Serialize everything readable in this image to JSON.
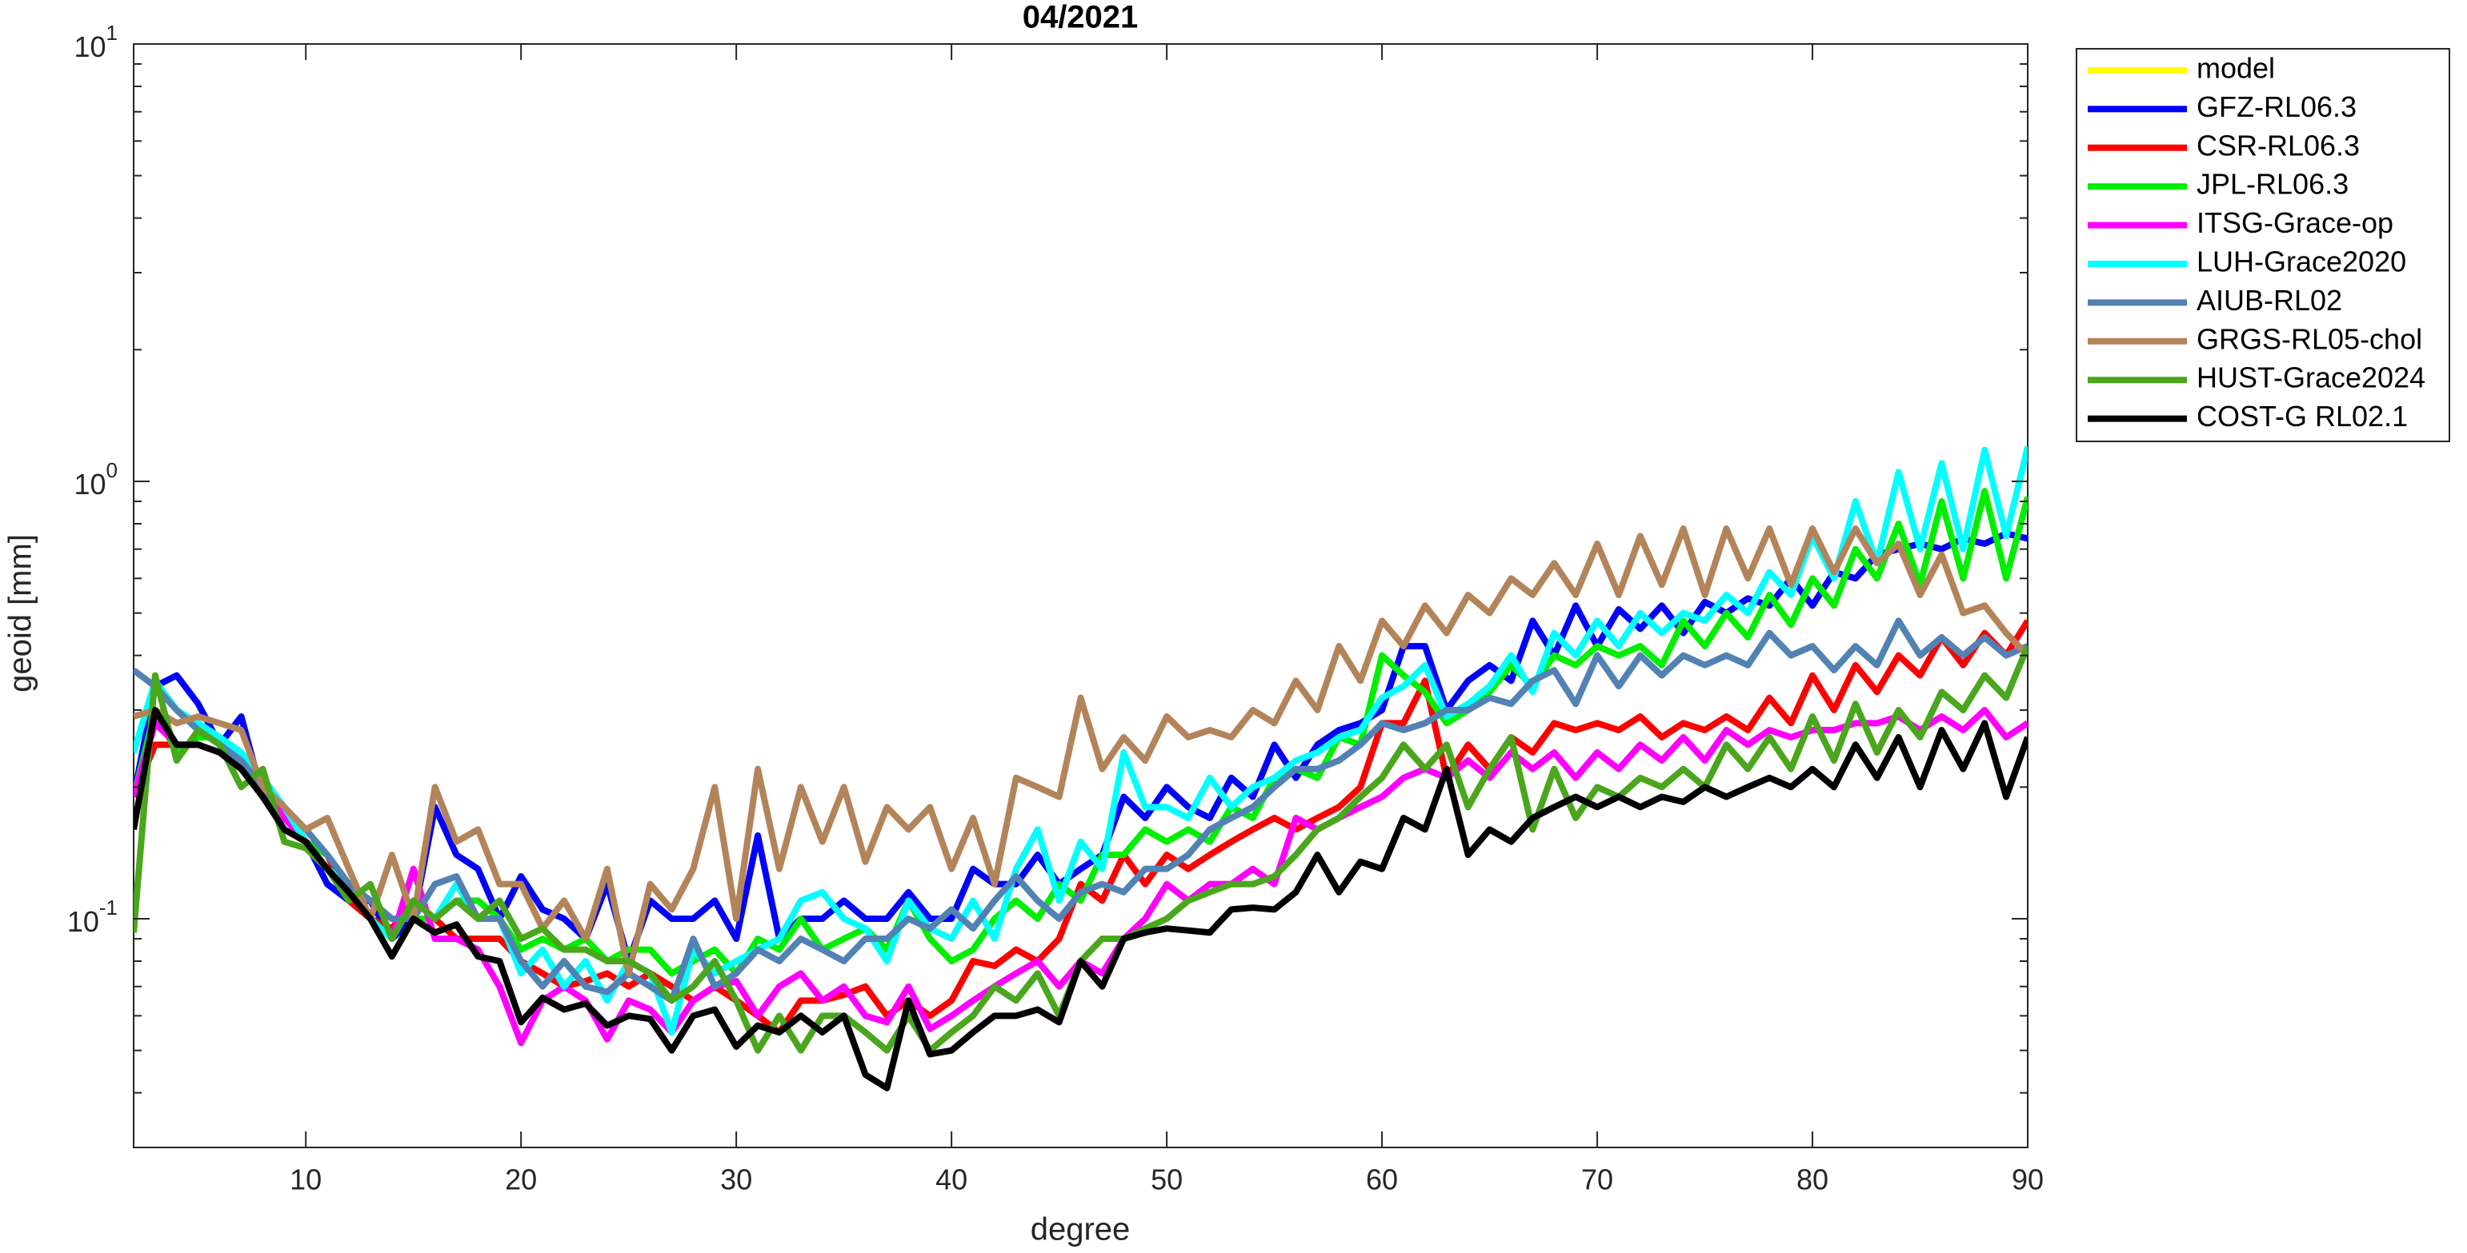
{
  "chart_data": {
    "type": "line",
    "title": "04/2021",
    "xlabel": "degree",
    "ylabel": "geoid [mm]",
    "log_y": true,
    "legend": "outside-right",
    "xlim": [
      2,
      90
    ],
    "xticks": [
      10,
      20,
      30,
      40,
      50,
      60,
      70,
      80,
      90
    ],
    "ylim": [
      0.03,
      10
    ],
    "yticks": [
      {
        "value": 0.1,
        "label": "10",
        "exponent": "-1"
      },
      {
        "value": 1,
        "label": "10",
        "exponent": "0"
      },
      {
        "value": 10,
        "label": "10",
        "exponent": "1"
      }
    ],
    "yminorticks": [
      0.04,
      0.05,
      0.06,
      0.07,
      0.08,
      0.09,
      0.2,
      0.3,
      0.4,
      0.5,
      0.6,
      0.7,
      0.8,
      0.9,
      2,
      3,
      4,
      5,
      6,
      7,
      8,
      9
    ],
    "x": [
      2,
      3,
      4,
      5,
      6,
      7,
      8,
      9,
      10,
      11,
      12,
      13,
      14,
      15,
      16,
      17,
      18,
      19,
      20,
      21,
      22,
      23,
      24,
      25,
      26,
      27,
      28,
      29,
      30,
      31,
      32,
      33,
      34,
      35,
      36,
      37,
      38,
      39,
      40,
      41,
      42,
      43,
      44,
      45,
      46,
      47,
      48,
      49,
      50,
      51,
      52,
      53,
      54,
      55,
      56,
      57,
      58,
      59,
      60,
      61,
      62,
      63,
      64,
      65,
      66,
      67,
      68,
      69,
      70,
      71,
      72,
      73,
      74,
      75,
      76,
      77,
      78,
      79,
      80,
      81,
      82,
      83,
      84,
      85,
      86,
      87,
      88,
      89,
      90
    ],
    "series": [
      {
        "name": "model",
        "color": "#ffff00",
        "values": [
          null,
          null,
          null,
          null,
          null,
          null,
          null,
          null,
          null,
          null,
          null,
          null,
          null,
          null,
          null,
          null,
          null,
          null,
          null,
          null,
          null,
          null,
          null,
          null,
          null,
          null,
          null,
          null,
          null,
          null,
          null,
          null,
          null,
          null,
          null,
          null,
          null,
          null,
          null,
          null,
          null,
          null,
          null,
          null,
          null,
          null,
          null,
          null,
          null,
          null,
          null,
          null,
          null,
          null,
          null,
          null,
          null,
          null,
          null,
          null,
          null,
          null,
          null,
          null,
          null,
          null,
          null,
          null,
          null,
          null,
          null,
          null,
          null,
          null,
          null,
          null,
          null,
          null,
          null,
          null,
          null,
          null,
          null,
          null,
          null,
          null,
          null,
          null,
          null
        ]
      },
      {
        "name": "GFZ-RL06.3",
        "color": "#0000ff",
        "values": [
          0.19,
          0.34,
          0.36,
          0.31,
          0.25,
          0.29,
          0.19,
          0.17,
          0.15,
          0.12,
          0.11,
          0.11,
          0.09,
          0.1,
          0.18,
          0.14,
          0.13,
          0.1,
          0.125,
          0.105,
          0.1,
          0.09,
          0.12,
          0.08,
          0.11,
          0.1,
          0.1,
          0.11,
          0.09,
          0.155,
          0.09,
          0.1,
          0.1,
          0.11,
          0.1,
          0.1,
          0.115,
          0.1,
          0.1,
          0.13,
          0.12,
          0.12,
          0.14,
          0.12,
          0.13,
          0.14,
          0.19,
          0.17,
          0.2,
          0.18,
          0.17,
          0.21,
          0.19,
          0.25,
          0.21,
          0.25,
          0.27,
          0.28,
          0.3,
          0.42,
          0.42,
          0.3,
          0.35,
          0.38,
          0.35,
          0.48,
          0.4,
          0.52,
          0.42,
          0.51,
          0.46,
          0.52,
          0.45,
          0.53,
          0.5,
          0.54,
          0.52,
          0.6,
          0.52,
          0.62,
          0.6,
          0.68,
          0.7,
          0.72,
          0.7,
          0.74,
          0.72,
          0.76,
          0.74
        ]
      },
      {
        "name": "CSR-RL06.3",
        "color": "#ff0000",
        "values": [
          0.19,
          0.25,
          0.25,
          0.25,
          0.24,
          0.22,
          0.2,
          0.18,
          0.15,
          0.14,
          0.11,
          0.1,
          0.095,
          0.11,
          0.1,
          0.09,
          0.09,
          0.09,
          0.08,
          0.075,
          0.07,
          0.072,
          0.075,
          0.07,
          0.075,
          0.07,
          0.065,
          0.07,
          0.065,
          0.06,
          0.055,
          0.065,
          0.065,
          0.067,
          0.07,
          0.06,
          0.065,
          0.06,
          0.065,
          0.08,
          0.078,
          0.085,
          0.08,
          0.09,
          0.12,
          0.11,
          0.14,
          0.12,
          0.14,
          0.13,
          0.14,
          0.15,
          0.16,
          0.17,
          0.16,
          0.17,
          0.18,
          0.2,
          0.28,
          0.28,
          0.35,
          0.21,
          0.25,
          0.22,
          0.26,
          0.24,
          0.28,
          0.27,
          0.28,
          0.27,
          0.29,
          0.26,
          0.28,
          0.27,
          0.29,
          0.27,
          0.32,
          0.28,
          0.36,
          0.3,
          0.38,
          0.33,
          0.4,
          0.36,
          0.44,
          0.38,
          0.45,
          0.4,
          0.48
        ]
      },
      {
        "name": "JPL-RL06.3",
        "color": "#00ee00",
        "values": [
          0.19,
          0.3,
          0.24,
          0.26,
          0.26,
          0.24,
          0.2,
          0.17,
          0.15,
          0.14,
          0.12,
          0.11,
          0.1,
          0.1,
          0.1,
          0.11,
          0.11,
          0.1,
          0.085,
          0.09,
          0.085,
          0.09,
          0.08,
          0.085,
          0.085,
          0.075,
          0.08,
          0.085,
          0.075,
          0.09,
          0.085,
          0.1,
          0.085,
          0.09,
          0.095,
          0.085,
          0.11,
          0.09,
          0.08,
          0.085,
          0.1,
          0.11,
          0.1,
          0.12,
          0.11,
          0.14,
          0.14,
          0.16,
          0.15,
          0.16,
          0.15,
          0.18,
          0.17,
          0.21,
          0.22,
          0.21,
          0.26,
          0.25,
          0.4,
          0.36,
          0.33,
          0.28,
          0.3,
          0.33,
          0.38,
          0.34,
          0.4,
          0.38,
          0.42,
          0.4,
          0.42,
          0.38,
          0.48,
          0.42,
          0.5,
          0.44,
          0.55,
          0.47,
          0.6,
          0.52,
          0.7,
          0.6,
          0.8,
          0.58,
          0.9,
          0.6,
          0.95,
          0.6,
          0.92
        ]
      },
      {
        "name": "ITSG-Grace-op",
        "color": "#ff00ff",
        "values": [
          0.19,
          0.28,
          0.25,
          0.25,
          0.24,
          0.22,
          0.2,
          0.17,
          0.15,
          0.13,
          0.12,
          0.1,
          0.09,
          0.13,
          0.09,
          0.09,
          0.085,
          0.07,
          0.052,
          0.065,
          0.07,
          0.065,
          0.053,
          0.065,
          0.062,
          0.055,
          0.065,
          0.07,
          0.072,
          0.06,
          0.07,
          0.075,
          0.065,
          0.07,
          0.06,
          0.058,
          0.07,
          0.056,
          0.06,
          0.065,
          0.07,
          0.075,
          0.08,
          0.07,
          0.08,
          0.075,
          0.09,
          0.1,
          0.12,
          0.11,
          0.12,
          0.12,
          0.13,
          0.12,
          0.17,
          0.16,
          0.17,
          0.18,
          0.19,
          0.21,
          0.22,
          0.21,
          0.23,
          0.21,
          0.24,
          0.22,
          0.24,
          0.21,
          0.24,
          0.22,
          0.25,
          0.23,
          0.26,
          0.23,
          0.27,
          0.25,
          0.27,
          0.26,
          0.27,
          0.27,
          0.28,
          0.28,
          0.29,
          0.27,
          0.29,
          0.27,
          0.3,
          0.26,
          0.28
        ]
      },
      {
        "name": "LUH-Grace2020",
        "color": "#00ffff",
        "values": [
          0.24,
          0.35,
          0.3,
          0.28,
          0.26,
          0.24,
          0.21,
          0.18,
          0.15,
          0.13,
          0.12,
          0.1,
          0.09,
          0.11,
          0.1,
          0.12,
          0.1,
          0.1,
          0.075,
          0.085,
          0.07,
          0.08,
          0.065,
          0.08,
          0.075,
          0.055,
          0.085,
          0.075,
          0.08,
          0.085,
          0.09,
          0.11,
          0.115,
          0.1,
          0.095,
          0.08,
          0.11,
          0.095,
          0.09,
          0.11,
          0.09,
          0.13,
          0.16,
          0.11,
          0.15,
          0.13,
          0.24,
          0.18,
          0.18,
          0.17,
          0.21,
          0.18,
          0.2,
          0.21,
          0.23,
          0.24,
          0.26,
          0.27,
          0.32,
          0.34,
          0.38,
          0.29,
          0.31,
          0.34,
          0.4,
          0.33,
          0.45,
          0.4,
          0.48,
          0.42,
          0.5,
          0.45,
          0.5,
          0.48,
          0.55,
          0.5,
          0.62,
          0.55,
          0.75,
          0.6,
          0.9,
          0.65,
          1.05,
          0.7,
          1.1,
          0.7,
          1.18,
          0.75,
          1.2
        ]
      },
      {
        "name": "AIUB-RL02",
        "color": "#5282b4",
        "values": [
          0.37,
          0.34,
          0.3,
          0.27,
          0.25,
          0.23,
          0.2,
          0.18,
          0.16,
          0.14,
          0.12,
          0.11,
          0.1,
          0.1,
          0.12,
          0.125,
          0.1,
          0.1,
          0.08,
          0.07,
          0.08,
          0.07,
          0.068,
          0.075,
          0.07,
          0.065,
          0.09,
          0.07,
          0.075,
          0.085,
          0.08,
          0.09,
          0.085,
          0.08,
          0.09,
          0.09,
          0.1,
          0.095,
          0.105,
          0.095,
          0.11,
          0.125,
          0.11,
          0.1,
          0.115,
          0.12,
          0.115,
          0.13,
          0.13,
          0.14,
          0.16,
          0.17,
          0.18,
          0.2,
          0.22,
          0.22,
          0.23,
          0.25,
          0.28,
          0.27,
          0.28,
          0.3,
          0.3,
          0.32,
          0.31,
          0.35,
          0.37,
          0.31,
          0.4,
          0.34,
          0.4,
          0.36,
          0.4,
          0.38,
          0.4,
          0.38,
          0.45,
          0.4,
          0.42,
          0.37,
          0.42,
          0.38,
          0.48,
          0.4,
          0.44,
          0.4,
          0.44,
          0.4,
          0.42
        ]
      },
      {
        "name": "GRGS-RL05-chol",
        "color": "#b3845a",
        "values": [
          0.29,
          0.3,
          0.28,
          0.29,
          0.28,
          0.27,
          0.2,
          0.18,
          0.16,
          0.17,
          0.13,
          0.1,
          0.14,
          0.1,
          0.2,
          0.15,
          0.16,
          0.12,
          0.12,
          0.095,
          0.11,
          0.09,
          0.13,
          0.075,
          0.12,
          0.105,
          0.13,
          0.2,
          0.1,
          0.22,
          0.13,
          0.2,
          0.15,
          0.2,
          0.135,
          0.18,
          0.16,
          0.18,
          0.13,
          0.17,
          0.12,
          0.21,
          0.2,
          0.19,
          0.32,
          0.22,
          0.26,
          0.23,
          0.29,
          0.26,
          0.27,
          0.26,
          0.3,
          0.28,
          0.35,
          0.3,
          0.42,
          0.35,
          0.48,
          0.42,
          0.52,
          0.45,
          0.55,
          0.5,
          0.6,
          0.55,
          0.65,
          0.55,
          0.72,
          0.55,
          0.75,
          0.58,
          0.78,
          0.55,
          0.78,
          0.6,
          0.78,
          0.58,
          0.78,
          0.62,
          0.78,
          0.65,
          0.72,
          0.55,
          0.68,
          0.5,
          0.52,
          0.45,
          0.4
        ]
      },
      {
        "name": "HUST-Grace2024",
        "color": "#4aa61c",
        "values": [
          0.093,
          0.36,
          0.23,
          0.27,
          0.25,
          0.2,
          0.22,
          0.15,
          0.145,
          0.13,
          0.11,
          0.12,
          0.09,
          0.11,
          0.1,
          0.11,
          0.1,
          0.11,
          0.09,
          0.095,
          0.085,
          0.085,
          0.08,
          0.08,
          0.075,
          0.065,
          0.07,
          0.08,
          0.065,
          0.05,
          0.06,
          0.05,
          0.06,
          0.06,
          0.055,
          0.05,
          0.06,
          0.05,
          0.055,
          0.06,
          0.07,
          0.065,
          0.075,
          0.06,
          0.08,
          0.09,
          0.09,
          0.095,
          0.1,
          0.11,
          0.115,
          0.12,
          0.12,
          0.125,
          0.14,
          0.16,
          0.17,
          0.19,
          0.21,
          0.25,
          0.22,
          0.25,
          0.18,
          0.22,
          0.26,
          0.16,
          0.22,
          0.17,
          0.2,
          0.19,
          0.21,
          0.2,
          0.22,
          0.2,
          0.25,
          0.22,
          0.26,
          0.22,
          0.29,
          0.23,
          0.31,
          0.24,
          0.3,
          0.26,
          0.33,
          0.3,
          0.36,
          0.32,
          0.42
        ]
      },
      {
        "name": "COST-G RL02.1",
        "color": "#000000",
        "values": [
          0.16,
          0.3,
          0.25,
          0.25,
          0.24,
          0.22,
          0.19,
          0.16,
          0.15,
          0.13,
          0.115,
          0.1,
          0.082,
          0.1,
          0.093,
          0.097,
          0.082,
          0.08,
          0.058,
          0.066,
          0.062,
          0.064,
          0.057,
          0.06,
          0.059,
          0.05,
          0.06,
          0.062,
          0.051,
          0.057,
          0.055,
          0.06,
          0.055,
          0.06,
          0.044,
          0.041,
          0.065,
          0.049,
          0.05,
          0.055,
          0.06,
          0.06,
          0.062,
          0.058,
          0.08,
          0.07,
          0.09,
          0.093,
          0.095,
          0.094,
          0.093,
          0.105,
          0.106,
          0.105,
          0.115,
          0.14,
          0.115,
          0.135,
          0.13,
          0.17,
          0.16,
          0.22,
          0.14,
          0.16,
          0.15,
          0.17,
          0.18,
          0.19,
          0.18,
          0.19,
          0.18,
          0.19,
          0.185,
          0.2,
          0.19,
          0.2,
          0.21,
          0.2,
          0.22,
          0.2,
          0.25,
          0.21,
          0.26,
          0.2,
          0.27,
          0.22,
          0.28,
          0.19,
          0.26
        ]
      }
    ]
  }
}
